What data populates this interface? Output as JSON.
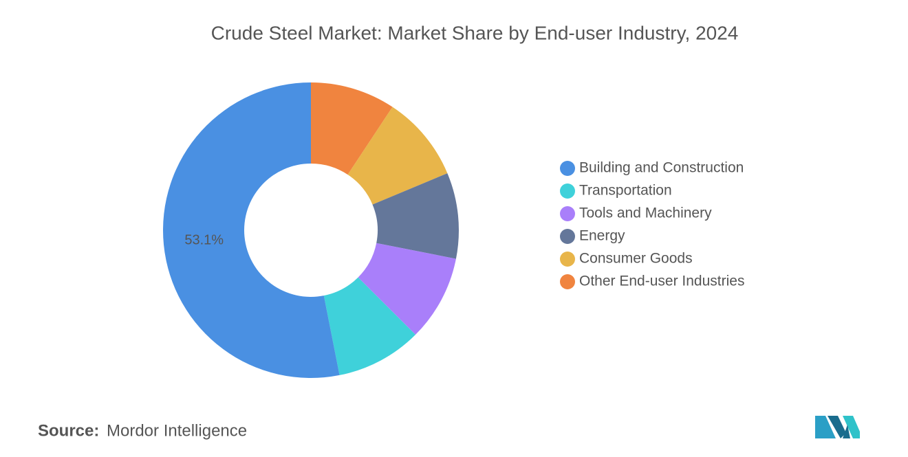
{
  "chart_data": {
    "type": "donut",
    "title": "Crude Steel Market: Market Share by End-user Industry, 2024",
    "categories": [
      "Building and Construction",
      "Transportation",
      "Tools and Machinery",
      "Energy",
      "Consumer Goods",
      "Other End-user Industries"
    ],
    "values": [
      53.1,
      9.4,
      9.4,
      9.4,
      9.4,
      9.3
    ],
    "value_labels": [
      "53.1%",
      null,
      null,
      null,
      null,
      null
    ],
    "colors": [
      "#4a90e2",
      "#3fd1da",
      "#a97ffa",
      "#64779a",
      "#e8b54a",
      "#f0843f"
    ],
    "legend": "right"
  },
  "footer": {
    "source_label": "Source:",
    "source": "Mordor Intelligence"
  }
}
